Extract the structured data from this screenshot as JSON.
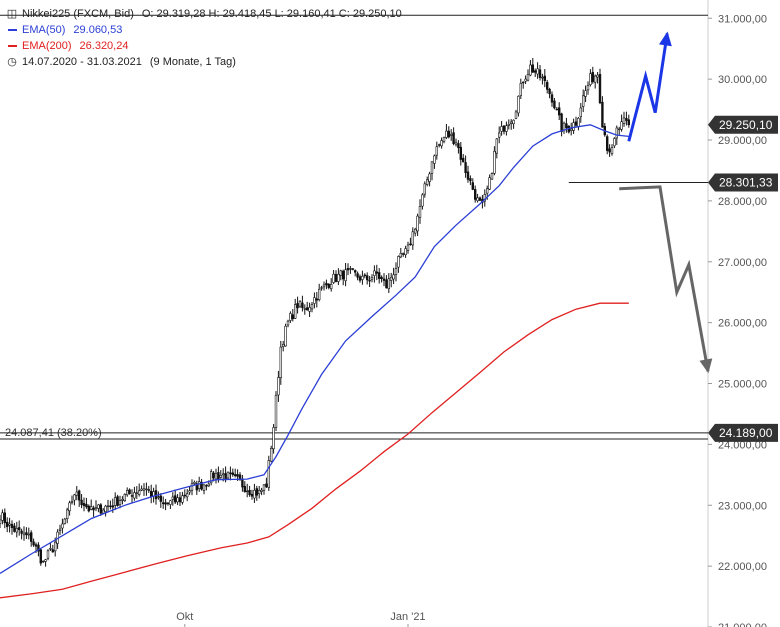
{
  "legend": {
    "title": "Nikkei225 (FXCM, Bid)",
    "ohlc": "O: 29.319,28  H: 29.418,45  L: 29.160,41  C: 29.250,10",
    "ema50_label": "EMA(50)",
    "ema50_value": "29.060,53",
    "ema200_label": "EMA(200)",
    "ema200_value": "26.320,24",
    "range": "14.07.2020 - 31.03.2021",
    "period": "(9 Monate, 1 Tag)",
    "icons": {
      "bars": "candlestick-icon",
      "clock": "clock-icon"
    }
  },
  "colors": {
    "candle": "#111111",
    "ema50": "#2b3fd6",
    "ema200": "#e02020",
    "up_arrow": "#1a36e6",
    "down_arrow": "#666666",
    "level_line": "#222222",
    "tag_bg": "#333333"
  },
  "chart_data": {
    "type": "candlestick",
    "ylim": [
      21000,
      31300
    ],
    "yticks": [
      "21.000,00",
      "22.000,00",
      "23.000,00",
      "24.000,00",
      "25.000,00",
      "26.000,00",
      "27.000,00",
      "28.000,00",
      "29.000,00",
      "30.000,00",
      "31.000,00"
    ],
    "ytick_values": [
      21000,
      22000,
      23000,
      24000,
      25000,
      26000,
      27000,
      28000,
      29000,
      30000,
      31000
    ],
    "xticks": [
      {
        "label": "Okt",
        "index": 77
      },
      {
        "label": "Jan '21",
        "index": 170
      }
    ],
    "close_path": [
      [
        0,
        22850
      ],
      [
        4,
        22650
      ],
      [
        8,
        22550
      ],
      [
        13,
        22450
      ],
      [
        18,
        22050
      ],
      [
        22,
        22300
      ],
      [
        28,
        22850
      ],
      [
        31,
        23200
      ],
      [
        38,
        22900
      ],
      [
        46,
        23000
      ],
      [
        52,
        23150
      ],
      [
        60,
        23300
      ],
      [
        68,
        23000
      ],
      [
        75,
        23100
      ],
      [
        80,
        23300
      ],
      [
        85,
        23350
      ],
      [
        89,
        23500
      ],
      [
        93,
        23500
      ],
      [
        99,
        23400
      ],
      [
        104,
        23250
      ],
      [
        108,
        23200
      ],
      [
        111,
        23350
      ],
      [
        114,
        24300
      ],
      [
        117,
        25600
      ],
      [
        120,
        26000
      ],
      [
        124,
        26300
      ],
      [
        127,
        26200
      ],
      [
        133,
        26500
      ],
      [
        138,
        26700
      ],
      [
        143,
        26800
      ],
      [
        147,
        26800
      ],
      [
        152,
        26700
      ],
      [
        157,
        26800
      ],
      [
        161,
        26600
      ],
      [
        166,
        27000
      ],
      [
        170,
        27200
      ],
      [
        173,
        27600
      ],
      [
        177,
        28200
      ],
      [
        181,
        28800
      ],
      [
        186,
        29100
      ],
      [
        190,
        29000
      ],
      [
        193,
        28600
      ],
      [
        196,
        28300
      ],
      [
        199,
        28000
      ],
      [
        201,
        27900
      ],
      [
        204,
        28300
      ],
      [
        207,
        29000
      ],
      [
        211,
        29300
      ],
      [
        214,
        29400
      ],
      [
        218,
        30000
      ],
      [
        221,
        30200
      ],
      [
        226,
        30000
      ],
      [
        230,
        29700
      ],
      [
        234,
        29200
      ],
      [
        237,
        29200
      ],
      [
        240,
        29300
      ],
      [
        243,
        29700
      ],
      [
        246,
        30000
      ],
      [
        249,
        30100
      ],
      [
        251,
        29300
      ],
      [
        253,
        28900
      ],
      [
        255,
        28800
      ],
      [
        257,
        29150
      ],
      [
        260,
        29280
      ],
      [
        262,
        29250
      ]
    ],
    "series": [
      {
        "name": "EMA(50)",
        "points": [
          [
            0,
            21880
          ],
          [
            13,
            22200
          ],
          [
            26,
            22500
          ],
          [
            38,
            22780
          ],
          [
            52,
            23000
          ],
          [
            64,
            23150
          ],
          [
            78,
            23300
          ],
          [
            90,
            23420
          ],
          [
            103,
            23430
          ],
          [
            110,
            23500
          ],
          [
            115,
            23800
          ],
          [
            120,
            24150
          ],
          [
            126,
            24600
          ],
          [
            134,
            25150
          ],
          [
            144,
            25700
          ],
          [
            155,
            26100
          ],
          [
            165,
            26450
          ],
          [
            173,
            26750
          ],
          [
            181,
            27250
          ],
          [
            190,
            27600
          ],
          [
            200,
            27950
          ],
          [
            208,
            28250
          ],
          [
            214,
            28550
          ],
          [
            222,
            28900
          ],
          [
            230,
            29100
          ],
          [
            238,
            29200
          ],
          [
            246,
            29250
          ],
          [
            252,
            29150
          ],
          [
            257,
            29080
          ],
          [
            262,
            29060
          ]
        ]
      },
      {
        "name": "EMA(200)",
        "points": [
          [
            0,
            21480
          ],
          [
            14,
            21550
          ],
          [
            26,
            21620
          ],
          [
            38,
            21750
          ],
          [
            52,
            21900
          ],
          [
            66,
            22050
          ],
          [
            78,
            22170
          ],
          [
            92,
            22300
          ],
          [
            103,
            22380
          ],
          [
            112,
            22480
          ],
          [
            120,
            22680
          ],
          [
            130,
            22950
          ],
          [
            140,
            23270
          ],
          [
            150,
            23560
          ],
          [
            160,
            23880
          ],
          [
            170,
            24170
          ],
          [
            180,
            24520
          ],
          [
            190,
            24850
          ],
          [
            200,
            25180
          ],
          [
            210,
            25520
          ],
          [
            220,
            25800
          ],
          [
            230,
            26050
          ],
          [
            240,
            26220
          ],
          [
            250,
            26320
          ],
          [
            262,
            26320
          ]
        ]
      }
    ],
    "hlines": [
      {
        "name": "fib-38.2",
        "value": 24087.41,
        "label": "24.087,41 (38.20%)"
      },
      {
        "name": "support-24189",
        "value": 24189,
        "tag": "24.189,00"
      },
      {
        "name": "support-28301",
        "value": 28301.33,
        "tag": "28.301,33",
        "start_index": 237
      },
      {
        "name": "high-31000",
        "value": 31050
      }
    ],
    "last_price": {
      "value": 29250.1,
      "tag": "29.250,10"
    },
    "projections": [
      {
        "name": "bullish-projection",
        "points": [
          [
            262,
            28980
          ],
          [
            269,
            30050
          ],
          [
            273,
            29450
          ],
          [
            278,
            30750
          ]
        ]
      },
      {
        "name": "bearish-projection",
        "points": [
          [
            258,
            28200
          ],
          [
            275,
            28230
          ],
          [
            282,
            26500
          ],
          [
            287,
            26950
          ],
          [
            295,
            25200
          ]
        ]
      }
    ]
  }
}
